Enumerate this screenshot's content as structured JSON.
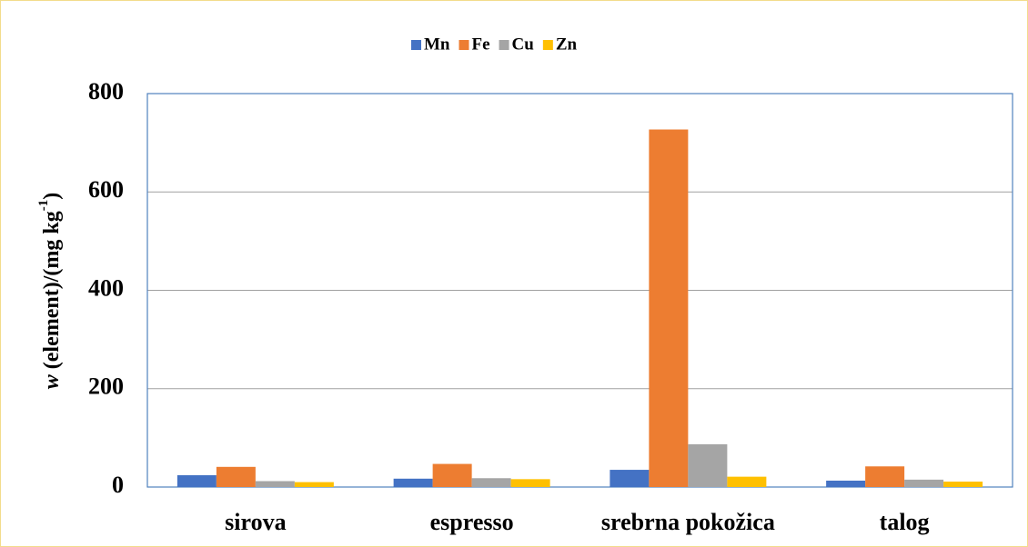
{
  "chart_data": {
    "type": "bar",
    "categories": [
      "sirova",
      "espresso",
      "srebrna pokožica",
      "talog"
    ],
    "series": [
      {
        "name": "Mn",
        "color": "#4472c4",
        "values": [
          24,
          17,
          35,
          13
        ]
      },
      {
        "name": "Fe",
        "color": "#ed7d31",
        "values": [
          41,
          47,
          727,
          42
        ]
      },
      {
        "name": "Cu",
        "color": "#a5a5a5",
        "values": [
          12,
          18,
          87,
          15
        ]
      },
      {
        "name": "Zn",
        "color": "#ffc000",
        "values": [
          10,
          16,
          21,
          11
        ]
      }
    ],
    "ylabel": {
      "symbol": "w",
      "text": " (element)/(mg kg",
      "superscript": "-1",
      "close": ")"
    },
    "ylim": [
      0,
      800
    ],
    "yticks": [
      0,
      200,
      400,
      600,
      800
    ],
    "grid": true,
    "legend": "top"
  }
}
